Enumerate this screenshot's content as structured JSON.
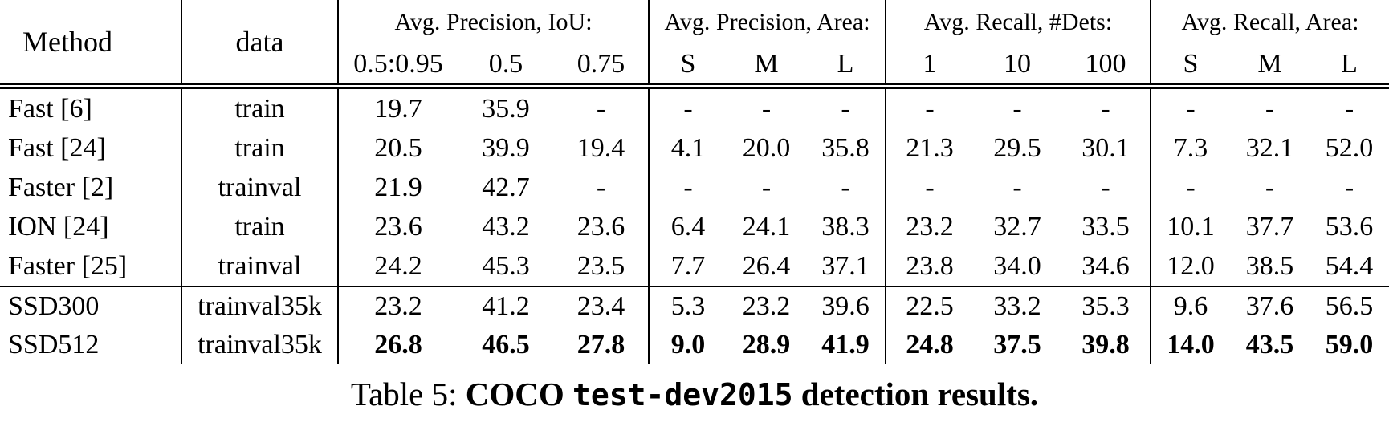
{
  "colors": {
    "text": "#000000",
    "background": "#ffffff",
    "rule": "#000000"
  },
  "table": {
    "columns": {
      "method_label": "Method",
      "data_label": "data",
      "groups": [
        {
          "label": "Avg. Precision, IoU:",
          "subcols": [
            "0.5:0.95",
            "0.5",
            "0.75"
          ]
        },
        {
          "label": "Avg. Precision, Area:",
          "subcols": [
            "S",
            "M",
            "L"
          ]
        },
        {
          "label": "Avg. Recall, #Dets:",
          "subcols": [
            "1",
            "10",
            "100"
          ]
        },
        {
          "label": "Avg. Recall, Area:",
          "subcols": [
            "S",
            "M",
            "L"
          ]
        }
      ]
    },
    "rows": [
      {
        "method": "Fast [6]",
        "data": "train",
        "bold": false,
        "rule_above": false,
        "values": [
          "19.7",
          "35.9",
          "-",
          "-",
          "-",
          "-",
          "-",
          "-",
          "-",
          "-",
          "-",
          "-"
        ]
      },
      {
        "method": "Fast [24]",
        "data": "train",
        "bold": false,
        "rule_above": false,
        "values": [
          "20.5",
          "39.9",
          "19.4",
          "4.1",
          "20.0",
          "35.8",
          "21.3",
          "29.5",
          "30.1",
          "7.3",
          "32.1",
          "52.0"
        ]
      },
      {
        "method": "Faster [2]",
        "data": "trainval",
        "bold": false,
        "rule_above": false,
        "values": [
          "21.9",
          "42.7",
          "-",
          "-",
          "-",
          "-",
          "-",
          "-",
          "-",
          "-",
          "-",
          "-"
        ]
      },
      {
        "method": "ION [24]",
        "data": "train",
        "bold": false,
        "rule_above": false,
        "values": [
          "23.6",
          "43.2",
          "23.6",
          "6.4",
          "24.1",
          "38.3",
          "23.2",
          "32.7",
          "33.5",
          "10.1",
          "37.7",
          "53.6"
        ]
      },
      {
        "method": "Faster [25]",
        "data": "trainval",
        "bold": false,
        "rule_above": false,
        "values": [
          "24.2",
          "45.3",
          "23.5",
          "7.7",
          "26.4",
          "37.1",
          "23.8",
          "34.0",
          "34.6",
          "12.0",
          "38.5",
          "54.4"
        ]
      },
      {
        "method": "SSD300",
        "data": "trainval35k",
        "bold": false,
        "rule_above": true,
        "values": [
          "23.2",
          "41.2",
          "23.4",
          "5.3",
          "23.2",
          "39.6",
          "22.5",
          "33.2",
          "35.3",
          "9.6",
          "37.6",
          "56.5"
        ]
      },
      {
        "method": "SSD512",
        "data": "trainval35k",
        "bold": true,
        "rule_above": false,
        "values": [
          "26.8",
          "46.5",
          "27.8",
          "9.0",
          "28.9",
          "41.9",
          "24.8",
          "37.5",
          "39.8",
          "14.0",
          "43.5",
          "59.0"
        ]
      }
    ]
  },
  "caption": {
    "prefix": "Table 5: ",
    "bold_lead": "COCO ",
    "code": "test-dev2015",
    "bold_tail": " detection results."
  }
}
